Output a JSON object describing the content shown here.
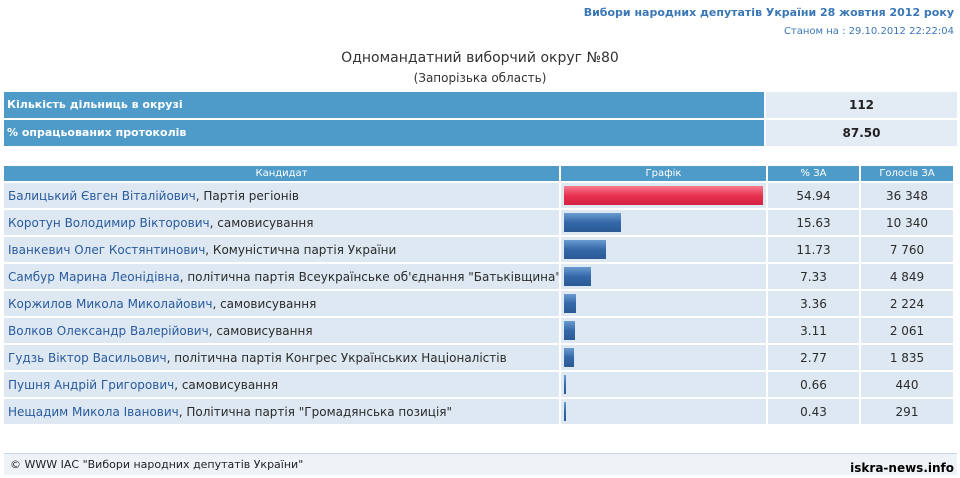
{
  "header": {
    "title": "Вибори народних депутатів України 28 жовтня 2012 року",
    "date": "Станом на : 29.10.2012 22:22:04"
  },
  "district": {
    "title": "Одномандатний виборчий округ №80",
    "region": "(Запорізька область)"
  },
  "stats": [
    {
      "label": "Кількість дільниць в окрузі",
      "value": "112"
    },
    {
      "label": "% опрацьованих протоколів",
      "value": "87.50"
    }
  ],
  "table": {
    "headers": {
      "candidate": "Кандидат",
      "chart": "Графік",
      "percent": "% ЗА",
      "votes": "Голосів ЗА"
    },
    "rows": [
      {
        "candidate": "Балицький Євген Віталійович",
        "party": ", Партія регіонів",
        "percent": "54.94",
        "votes": "36 348",
        "share": 54.94
      },
      {
        "candidate": "Коротун Володимир Вікторович",
        "party": ", самовисування",
        "percent": "15.63",
        "votes": "10 340",
        "share": 15.63
      },
      {
        "candidate": "Іванкевич Олег Костянтинович",
        "party": ", Комуністична партія України",
        "percent": "11.73",
        "votes": "7 760",
        "share": 11.73
      },
      {
        "candidate": "Самбур Марина Леонідівна",
        "party": ", політична партія Всеукраїнське об'єднання \"Батьківщина\"",
        "percent": "7.33",
        "votes": "4 849",
        "share": 7.33
      },
      {
        "candidate": "Коржилов Микола Миколайович",
        "party": ", самовисування",
        "percent": "3.36",
        "votes": "2 224",
        "share": 3.36
      },
      {
        "candidate": "Волков Олександр Валерійович",
        "party": ", самовисування",
        "percent": "3.11",
        "votes": "2 061",
        "share": 3.11
      },
      {
        "candidate": "Гудзь Віктор Васильович",
        "party": ", політична партія Конгрес Українських Націоналістів",
        "percent": "2.77",
        "votes": "1 835",
        "share": 2.77
      },
      {
        "candidate": "Пушня Андрій Григорович",
        "party": ", самовисування",
        "percent": "0.66",
        "votes": "440",
        "share": 0.66
      },
      {
        "candidate": "Нещадим Микола Іванович",
        "party": ", Політична партія \"Громадянська позиція\"",
        "percent": "0.43",
        "votes": "291",
        "share": 0.43
      }
    ]
  },
  "colors": {
    "header_blue": "#4e9bc9",
    "leader_bar": "#e83350",
    "bar": "#3468a8",
    "row_bg": "#dde8f2"
  },
  "footer": {
    "text": "© WWW ІАС \"Вибори народних депутатів України\""
  },
  "watermark": "iskra-news.info"
}
